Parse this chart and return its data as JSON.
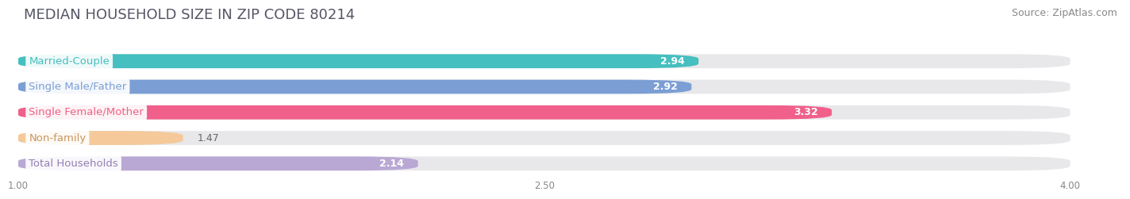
{
  "title": "MEDIAN HOUSEHOLD SIZE IN ZIP CODE 80214",
  "source": "Source: ZipAtlas.com",
  "categories": [
    "Married-Couple",
    "Single Male/Father",
    "Single Female/Mother",
    "Non-family",
    "Total Households"
  ],
  "values": [
    2.94,
    2.92,
    3.32,
    1.47,
    2.14
  ],
  "bar_colors": [
    "#45bfbf",
    "#7b9fd4",
    "#f0608a",
    "#f5c99a",
    "#b9a8d4"
  ],
  "label_text_colors": [
    "#45bfbf",
    "#7b9fd4",
    "#f0608a",
    "#c8965a",
    "#9080b4"
  ],
  "xlim_data_min": 1.0,
  "xlim_data_max": 4.0,
  "xticks": [
    1.0,
    2.5,
    4.0
  ],
  "xticklabels": [
    "1.00",
    "2.50",
    "4.00"
  ],
  "title_fontsize": 13,
  "source_fontsize": 9,
  "label_fontsize": 9.5,
  "value_fontsize": 9,
  "background_color": "#ffffff",
  "bar_bg_color": "#e8e8eb",
  "bar_height": 0.55,
  "bar_gap": 0.45
}
